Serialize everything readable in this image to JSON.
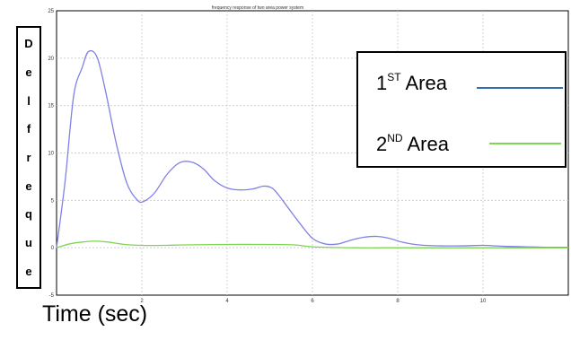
{
  "chart_data": {
    "type": "line",
    "title": "frequency response of two area power system",
    "xlabel": "Time (sec)",
    "ylabel": "Del freque",
    "xlim": [
      0,
      12
    ],
    "ylim": [
      -5,
      25
    ],
    "xticks": [
      2,
      4,
      6,
      8,
      10
    ],
    "yticks": [
      -5,
      0,
      5,
      10,
      15,
      20,
      25
    ],
    "grid": true,
    "legend_placement": "top-right",
    "series": [
      {
        "name": "1ST Area",
        "color": "#8080e8",
        "x": [
          0,
          0.2,
          0.4,
          0.6,
          0.75,
          0.95,
          1.15,
          1.4,
          1.65,
          1.9,
          2.05,
          2.3,
          2.6,
          2.9,
          3.2,
          3.45,
          3.7,
          4.0,
          4.3,
          4.6,
          4.85,
          5.05,
          5.2,
          5.4,
          5.7,
          6.0,
          6.3,
          6.6,
          6.9,
          7.2,
          7.5,
          7.8,
          8.1,
          8.5,
          9.0,
          9.5,
          10.0,
          10.5,
          11.0,
          11.5,
          12.0
        ],
        "y": [
          0,
          7,
          16,
          19,
          20.7,
          20.1,
          16.5,
          11,
          6.8,
          5.0,
          4.9,
          5.8,
          7.8,
          9.0,
          9.0,
          8.3,
          7.1,
          6.3,
          6.1,
          6.2,
          6.5,
          6.3,
          5.6,
          4.4,
          2.6,
          1.0,
          0.4,
          0.4,
          0.8,
          1.1,
          1.2,
          1.0,
          0.6,
          0.3,
          0.2,
          0.2,
          0.25,
          0.15,
          0.1,
          0.05,
          0.05
        ]
      },
      {
        "name": "2ND Area",
        "color": "#7ed650",
        "x": [
          0,
          0.3,
          0.6,
          0.9,
          1.2,
          1.6,
          2.0,
          2.5,
          3.0,
          4.0,
          5.0,
          5.6,
          6.0,
          7.0,
          8.0,
          9.0,
          10.0,
          11.0,
          12.0
        ],
        "y": [
          0,
          0.4,
          0.6,
          0.7,
          0.6,
          0.35,
          0.25,
          0.25,
          0.3,
          0.35,
          0.35,
          0.3,
          0.1,
          0,
          0,
          0,
          0,
          0,
          0
        ]
      }
    ]
  },
  "ylabel_letters": [
    "D",
    "e",
    "l",
    "f",
    "r",
    "e",
    "q",
    "u",
    "e"
  ],
  "legend": {
    "area1": {
      "prefix": "1",
      "sup": "ST",
      "suffix": " Area",
      "color": "#2f6fb0"
    },
    "area2": {
      "prefix": "2",
      "sup": "ND",
      "suffix": " Area",
      "color": "#7ed650"
    }
  }
}
